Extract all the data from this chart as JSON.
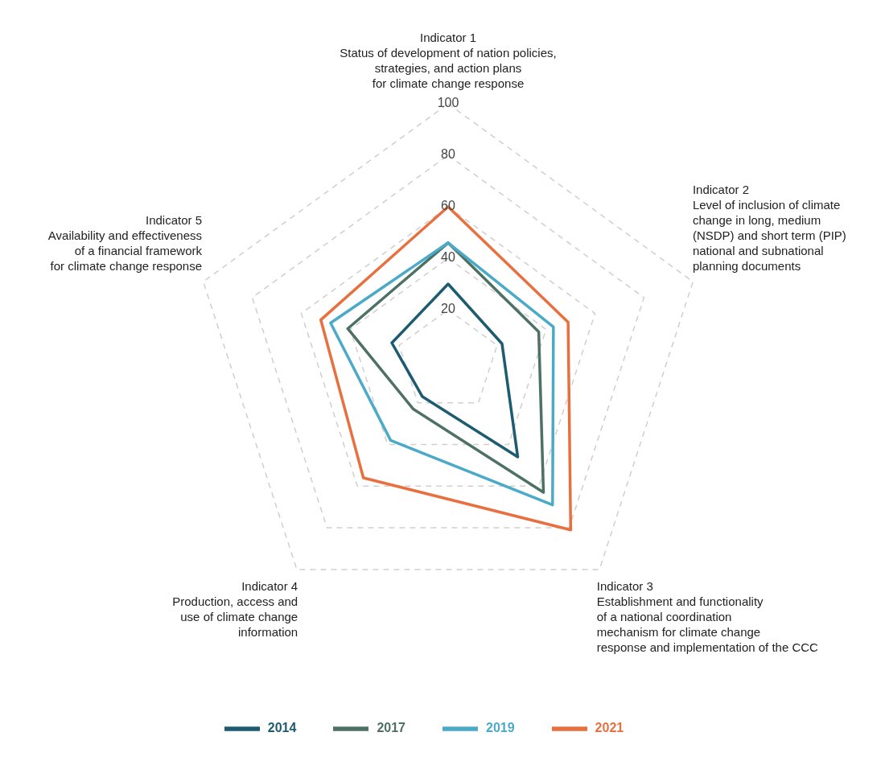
{
  "chart_data": {
    "type": "radar",
    "categories": [
      "Indicator 1\nStatus of development of nation policies,\nstrategies, and action plans\nfor climate change response",
      "Indicator 2\nLevel of inclusion of climate\nchange in long, medium\n(NSDP) and short term (PIP)\nnational and subnational\nplanning documents",
      "Indicator 3\nEstablishment and functionality\nof a national coordination\nmechanism for climate change\nresponse and implementation of the CCC",
      "Indicator 4\nProduction, access and\nuse of climate change\ninformation",
      "Indicator 5\nAvailability and effectiveness\nof a financial framework\nfor climate change response"
    ],
    "series": [
      {
        "name": "2014",
        "color": "#1d5c70",
        "values": [
          30,
          22,
          46,
          17,
          23
        ]
      },
      {
        "name": "2017",
        "color": "#4d7265",
        "values": [
          46,
          37,
          63,
          23,
          41
        ]
      },
      {
        "name": "2019",
        "color": "#4aaac8",
        "values": [
          46,
          43,
          69,
          38,
          48
        ]
      },
      {
        "name": "2021",
        "color": "#e8703f",
        "values": [
          60,
          49,
          81,
          56,
          52
        ]
      }
    ],
    "ylim": [
      0,
      100
    ],
    "yticks": [
      20,
      40,
      60,
      80,
      100
    ],
    "grid": true,
    "legend": "bottom",
    "marker": "none",
    "line_style": "solid"
  }
}
